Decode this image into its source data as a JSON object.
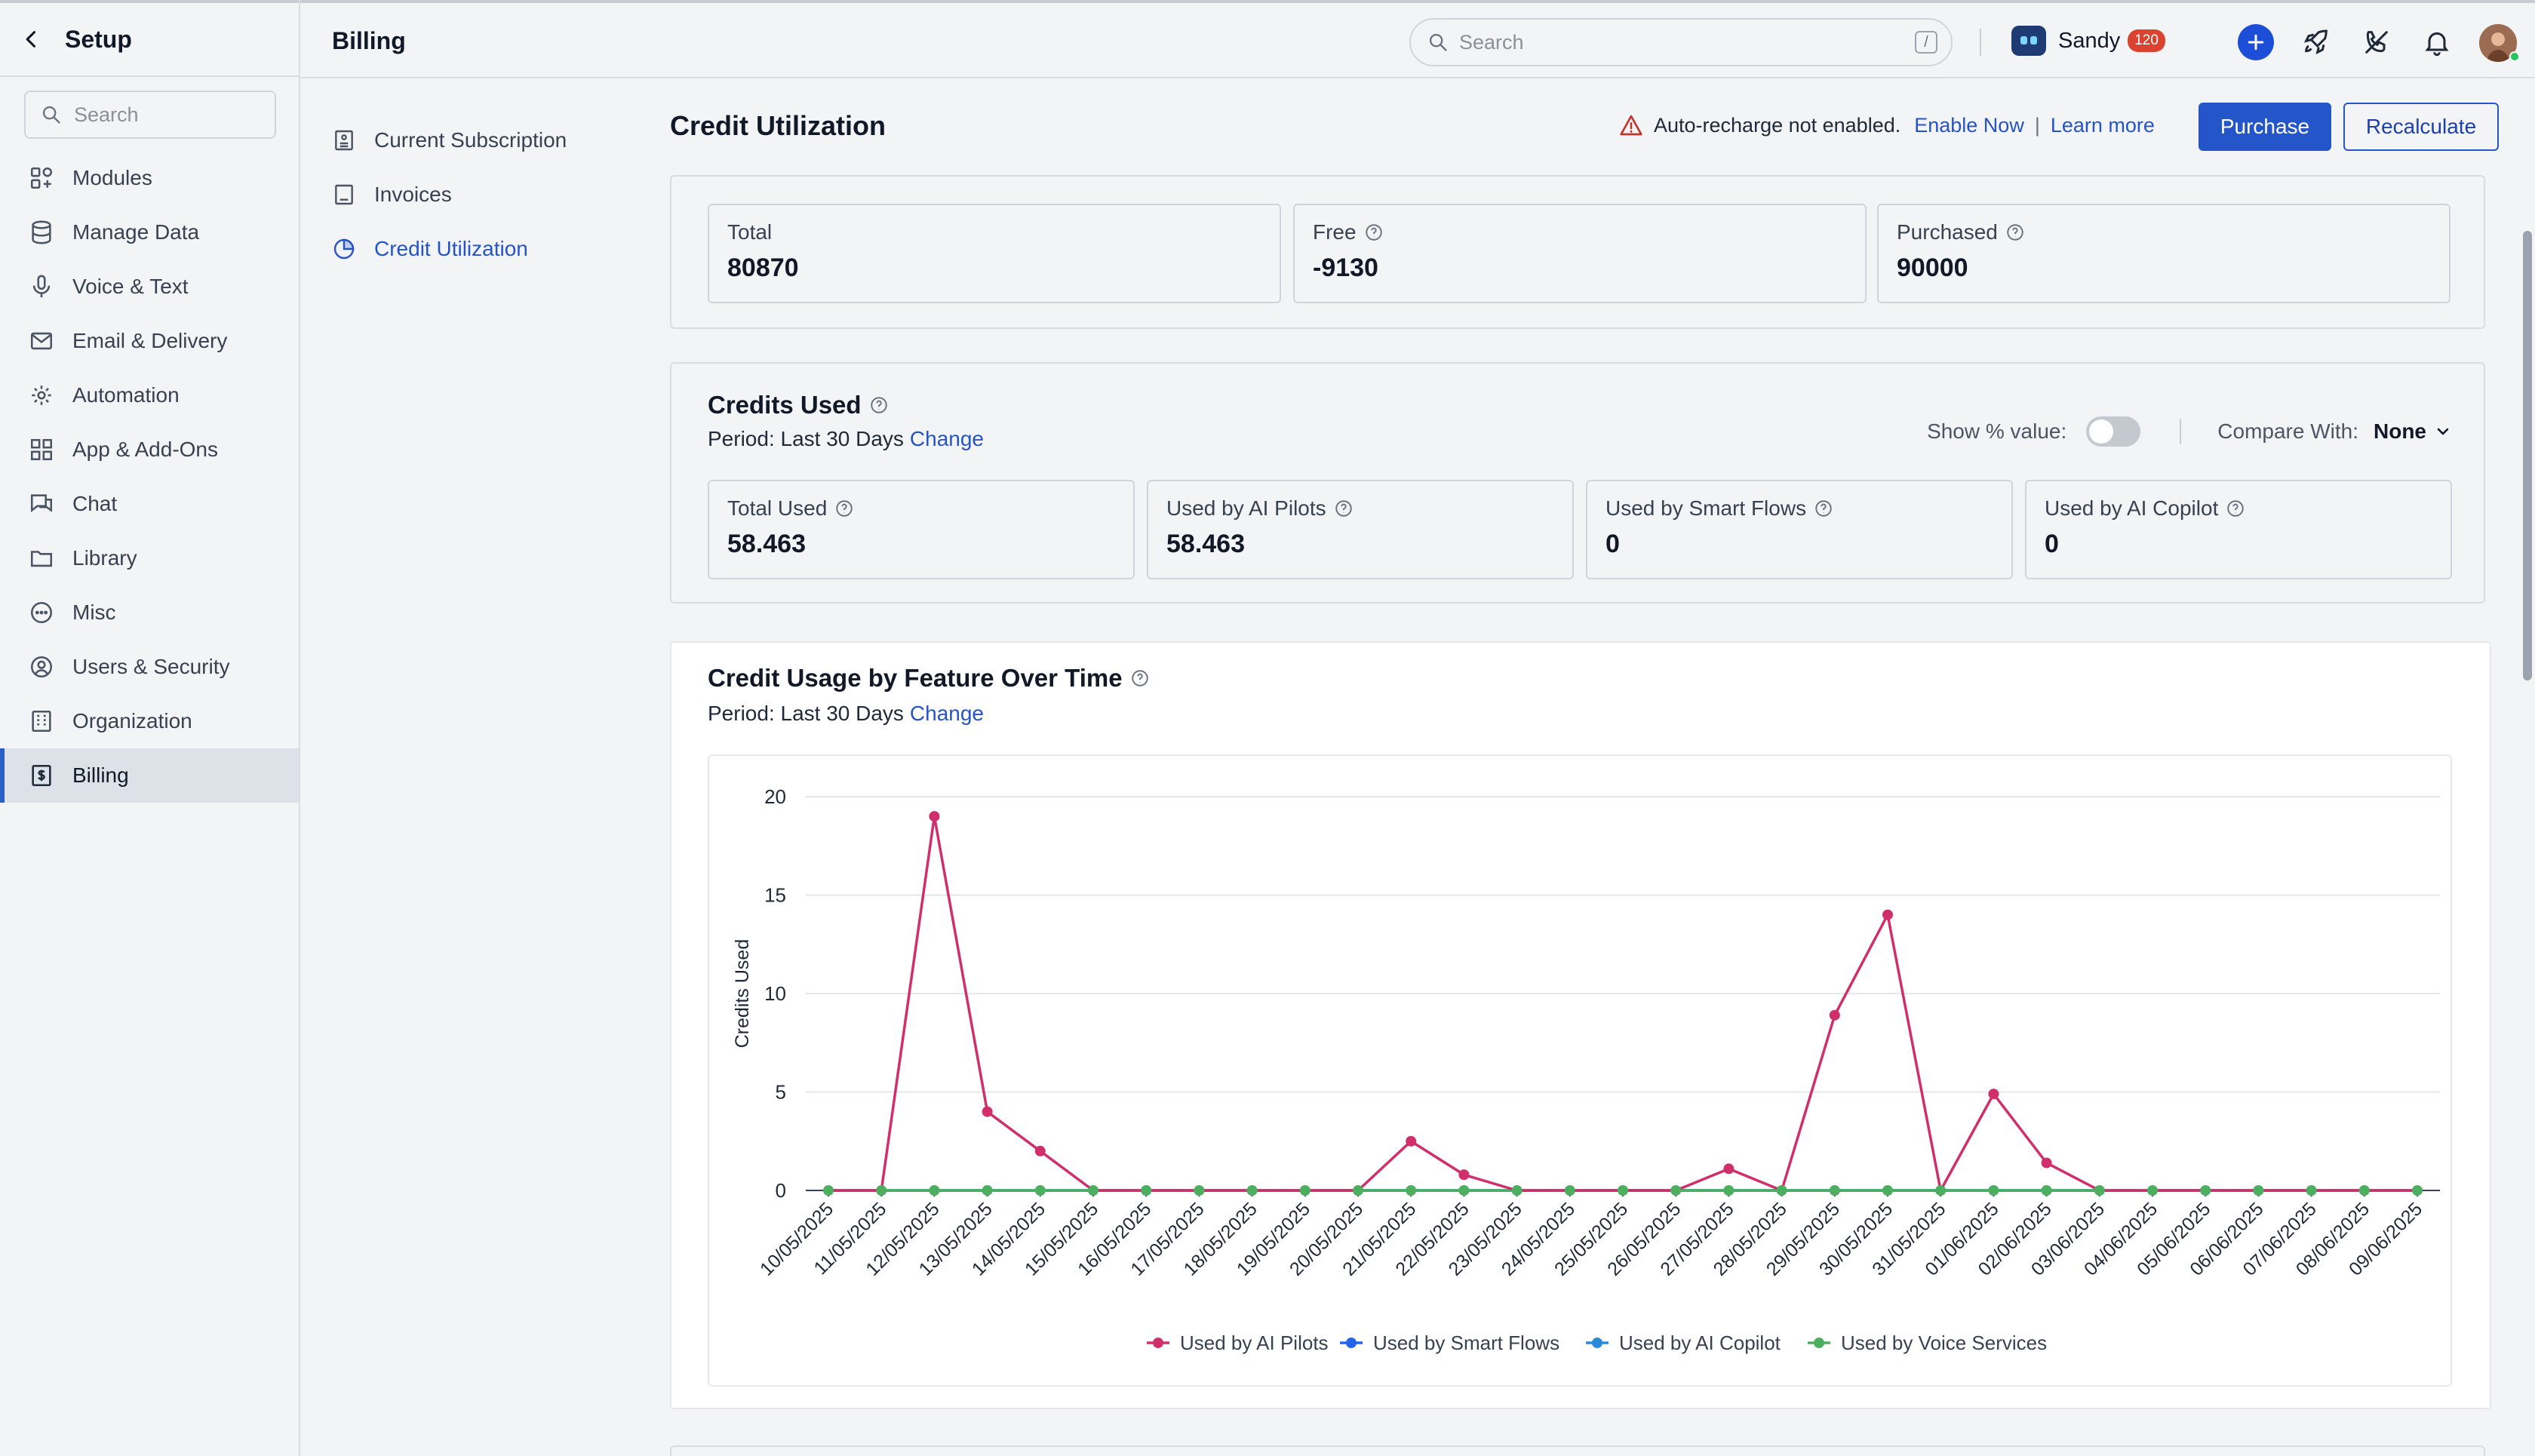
{
  "setup": {
    "title": "Setup",
    "search_placeholder": "Search",
    "items": [
      {
        "label": "Modules",
        "icon": "modules-icon"
      },
      {
        "label": "Manage Data",
        "icon": "database-icon"
      },
      {
        "label": "Voice & Text",
        "icon": "microphone-icon"
      },
      {
        "label": "Email & Delivery",
        "icon": "mail-icon"
      },
      {
        "label": "Automation",
        "icon": "automation-icon"
      },
      {
        "label": "App & Add-Ons",
        "icon": "apps-grid-icon"
      },
      {
        "label": "Chat",
        "icon": "chat-icon"
      },
      {
        "label": "Library",
        "icon": "folder-icon"
      },
      {
        "label": "Misc",
        "icon": "more-circle-icon"
      },
      {
        "label": "Users & Security",
        "icon": "user-circle-icon"
      },
      {
        "label": "Organization",
        "icon": "building-icon"
      },
      {
        "label": "Billing",
        "icon": "billing-icon",
        "active": true
      }
    ]
  },
  "topbar": {
    "title": "Billing",
    "search_placeholder": "Search",
    "search_shortcut": "/",
    "user_name": "Sandy",
    "notification_count": "120"
  },
  "billing_nav": {
    "items": [
      {
        "label": "Current Subscription",
        "icon": "subscription-icon"
      },
      {
        "label": "Invoices",
        "icon": "invoice-icon"
      },
      {
        "label": "Credit Utilization",
        "icon": "credit-utilization-icon",
        "active": true
      }
    ]
  },
  "main": {
    "title": "Credit Utilization",
    "alert_text": "Auto-recharge not enabled.",
    "enable_now": "Enable Now",
    "separator": "|",
    "learn_more": "Learn more",
    "purchase_label": "Purchase",
    "recalculate_label": "Recalculate"
  },
  "balance": {
    "total_label": "Total",
    "total_value": "80870",
    "free_label": "Free",
    "free_value": "-9130",
    "purchased_label": "Purchased",
    "purchased_value": "90000"
  },
  "credits_used": {
    "title": "Credits Used",
    "period_label": "Period: Last 30 Days",
    "change_label": "Change",
    "show_percent_label": "Show % value:",
    "show_percent_on": false,
    "compare_label": "Compare With:",
    "compare_value": "None",
    "stats": [
      {
        "label": "Total Used",
        "value": "58.463"
      },
      {
        "label": "Used by AI Pilots",
        "value": "58.463"
      },
      {
        "label": "Used by Smart Flows",
        "value": "0"
      },
      {
        "label": "Used by AI Copilot",
        "value": "0"
      }
    ]
  },
  "usage_chart": {
    "title": "Credit Usage by Feature Over Time",
    "period_label": "Period: Last 30 Days",
    "change_label": "Change"
  },
  "chart_data": {
    "type": "line",
    "ylabel": "Credits Used",
    "xlabel": "",
    "ylim": [
      0,
      20
    ],
    "yticks": [
      0,
      5,
      10,
      15,
      20
    ],
    "grid": true,
    "legend_position": "bottom",
    "categories": [
      "10/05/2025",
      "11/05/2025",
      "12/05/2025",
      "13/05/2025",
      "14/05/2025",
      "15/05/2025",
      "16/05/2025",
      "17/05/2025",
      "18/05/2025",
      "19/05/2025",
      "20/05/2025",
      "21/05/2025",
      "22/05/2025",
      "23/05/2025",
      "24/05/2025",
      "25/05/2025",
      "26/05/2025",
      "27/05/2025",
      "28/05/2025",
      "29/05/2025",
      "30/05/2025",
      "31/05/2025",
      "01/06/2025",
      "02/06/2025",
      "03/06/2025",
      "04/06/2025",
      "05/06/2025",
      "06/06/2025",
      "07/06/2025",
      "08/06/2025",
      "09/06/2025"
    ],
    "series": [
      {
        "name": "Used by AI Pilots",
        "color": "#d02f6b",
        "values": [
          0,
          0,
          19,
          4,
          2,
          0,
          0,
          0,
          0,
          0,
          0,
          2.5,
          0.8,
          0,
          0,
          0,
          0,
          1.1,
          0,
          8.9,
          14,
          0,
          4.9,
          1.4,
          0,
          0,
          0,
          0,
          0,
          0,
          0
        ]
      },
      {
        "name": "Used by Smart Flows",
        "color": "#2563eb",
        "values": [
          0,
          0,
          0,
          0,
          0,
          0,
          0,
          0,
          0,
          0,
          0,
          0,
          0,
          0,
          0,
          0,
          0,
          0,
          0,
          0,
          0,
          0,
          0,
          0,
          0,
          0,
          0,
          0,
          0,
          0,
          0
        ]
      },
      {
        "name": "Used by AI Copilot",
        "color": "#2b8ad8",
        "values": [
          0,
          0,
          0,
          0,
          0,
          0,
          0,
          0,
          0,
          0,
          0,
          0,
          0,
          0,
          0,
          0,
          0,
          0,
          0,
          0,
          0,
          0,
          0,
          0,
          0,
          0,
          0,
          0,
          0,
          0,
          0
        ]
      },
      {
        "name": "Used by Voice Services",
        "color": "#4caf5f",
        "values": [
          0,
          0,
          0,
          0,
          0,
          0,
          0,
          0,
          0,
          0,
          0,
          0,
          0,
          0,
          0,
          0,
          0,
          0,
          0,
          0,
          0,
          0,
          0,
          0,
          0,
          0,
          0,
          0,
          0,
          0,
          0
        ]
      }
    ]
  }
}
